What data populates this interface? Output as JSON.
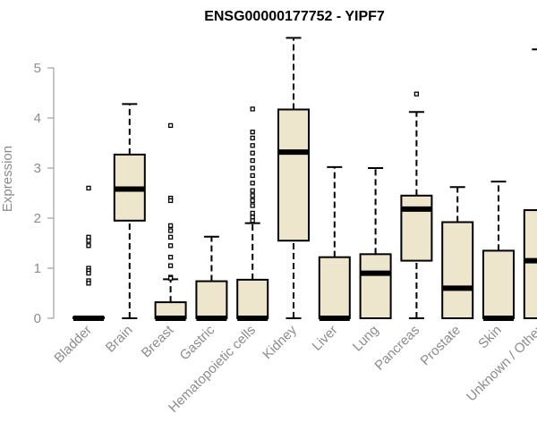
{
  "chart_data": {
    "type": "box",
    "title": "ENSG00000177752 - YIPF7",
    "ylabel": "Expression",
    "xlabel": "",
    "ylim": [
      0,
      5.7
    ],
    "yticks": [
      0,
      1,
      2,
      3,
      4,
      5
    ],
    "ytick_labels": [
      "0",
      "1",
      "2",
      "3",
      "4",
      "5"
    ],
    "box_fill": "#ede6cc",
    "categories": [
      "Bladder",
      "Brain",
      "Breast",
      "Gastric",
      "Hematopoietic cells",
      "Kidney",
      "Liver",
      "Lung",
      "Pancreas",
      "Prostate",
      "Skin",
      "Unknown / Other"
    ],
    "boxes": [
      {
        "q1": 0.0,
        "median": 0.0,
        "q3": 0.02,
        "whisker_low": 0.0,
        "whisker_high": 0.02,
        "outliers": [
          2.6,
          1.62,
          1.55,
          1.45,
          1.0,
          0.95,
          0.9,
          0.75,
          0.7
        ]
      },
      {
        "q1": 1.95,
        "median": 2.58,
        "q3": 3.27,
        "whisker_low": 0.0,
        "whisker_high": 4.28,
        "outliers": []
      },
      {
        "q1": 0.0,
        "median": 0.0,
        "q3": 0.32,
        "whisker_low": 0.0,
        "whisker_high": 0.78,
        "outliers": [
          3.85,
          2.4,
          2.35,
          1.85,
          1.75,
          1.62,
          1.45,
          1.22,
          1.05,
          0.82,
          0.8
        ]
      },
      {
        "q1": 0.0,
        "median": 0.0,
        "q3": 0.74,
        "whisker_low": 0.0,
        "whisker_high": 1.63,
        "outliers": []
      },
      {
        "q1": 0.0,
        "median": 0.0,
        "q3": 0.77,
        "whisker_low": 0.0,
        "whisker_high": 1.9,
        "outliers": [
          4.18,
          3.72,
          3.6,
          3.45,
          3.3,
          3.15,
          3.0,
          2.85,
          2.7,
          2.55,
          2.45,
          2.35,
          2.25,
          2.1,
          2.02,
          1.95
        ]
      },
      {
        "q1": 1.55,
        "median": 3.32,
        "q3": 4.17,
        "whisker_low": 0.0,
        "whisker_high": 5.6,
        "outliers": []
      },
      {
        "q1": 0.0,
        "median": 0.0,
        "q3": 1.22,
        "whisker_low": 0.0,
        "whisker_high": 3.02,
        "outliers": []
      },
      {
        "q1": 0.0,
        "median": 0.9,
        "q3": 1.28,
        "whisker_low": 0.0,
        "whisker_high": 3.0,
        "outliers": []
      },
      {
        "q1": 1.15,
        "median": 2.18,
        "q3": 2.45,
        "whisker_low": 0.0,
        "whisker_high": 4.12,
        "outliers": [
          4.48
        ]
      },
      {
        "q1": 0.0,
        "median": 0.6,
        "q3": 1.92,
        "whisker_low": 0.0,
        "whisker_high": 2.62,
        "outliers": []
      },
      {
        "q1": 0.0,
        "median": 0.0,
        "q3": 1.35,
        "whisker_low": 0.0,
        "whisker_high": 2.73,
        "outliers": []
      },
      {
        "q1": 0.0,
        "median": 1.15,
        "q3": 2.16,
        "whisker_low": 0.0,
        "whisker_high": 5.37,
        "outliers": []
      }
    ]
  }
}
